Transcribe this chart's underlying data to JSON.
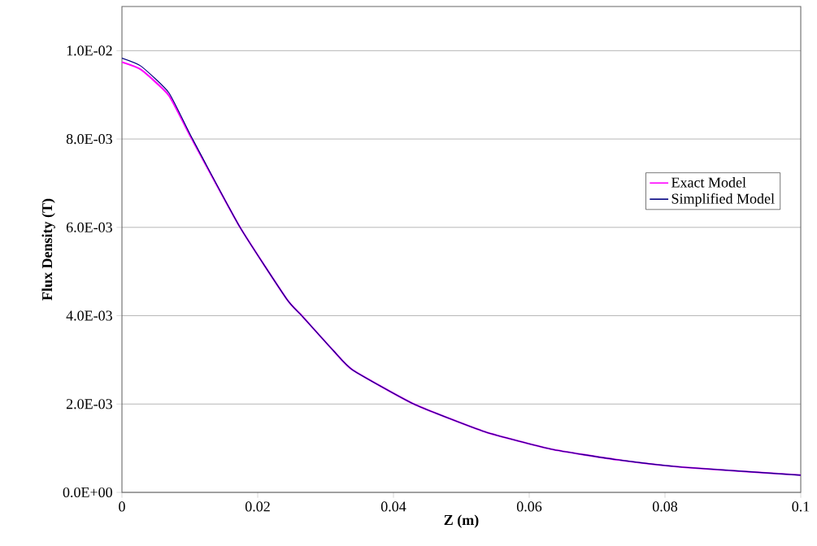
{
  "chart_data": {
    "type": "line",
    "xlabel": "Z (m)",
    "ylabel": "Flux Density (T)",
    "xlim": [
      0,
      0.1
    ],
    "ylim": [
      0,
      0.011
    ],
    "xticks": [
      0,
      0.02,
      0.04,
      0.06,
      0.08,
      0.1
    ],
    "yticks": [
      {
        "value": 0,
        "label": "0.0E+00"
      },
      {
        "value": 0.002,
        "label": "2.0E-03"
      },
      {
        "value": 0.004,
        "label": "4.0E-03"
      },
      {
        "value": 0.006,
        "label": "6.0E-03"
      },
      {
        "value": 0.008,
        "label": "8.0E-03"
      },
      {
        "value": 0.01,
        "label": "1.0E-02"
      }
    ],
    "grid": "y",
    "legend": "right",
    "marker": "none",
    "line_style": "solid",
    "series": [
      {
        "name": "Exact Model",
        "color": "#ff00ff",
        "x": [
          0,
          0.0028,
          0.0069,
          0.0103,
          0.0174,
          0.0243,
          0.0265,
          0.0312,
          0.034,
          0.043,
          0.0535,
          0.0632,
          0.0729,
          0.0826,
          0.1
        ],
        "values": [
          0.00974,
          0.00957,
          0.00899,
          0.008,
          0.006,
          0.00437,
          0.004,
          0.0032,
          0.00277,
          0.002,
          0.00137,
          0.00098,
          0.00074,
          0.00057,
          0.00039
        ]
      },
      {
        "name": "Simplified Model",
        "color": "#000080",
        "x": [
          0,
          0.0028,
          0.0069,
          0.0103,
          0.0174,
          0.0243,
          0.0265,
          0.0312,
          0.034,
          0.043,
          0.0535,
          0.0632,
          0.0729,
          0.0826,
          0.1
        ],
        "values": [
          0.00983,
          0.00965,
          0.00905,
          0.00803,
          0.006,
          0.00437,
          0.004,
          0.0032,
          0.00277,
          0.002,
          0.00137,
          0.00098,
          0.00074,
          0.00057,
          0.00039
        ]
      }
    ]
  }
}
